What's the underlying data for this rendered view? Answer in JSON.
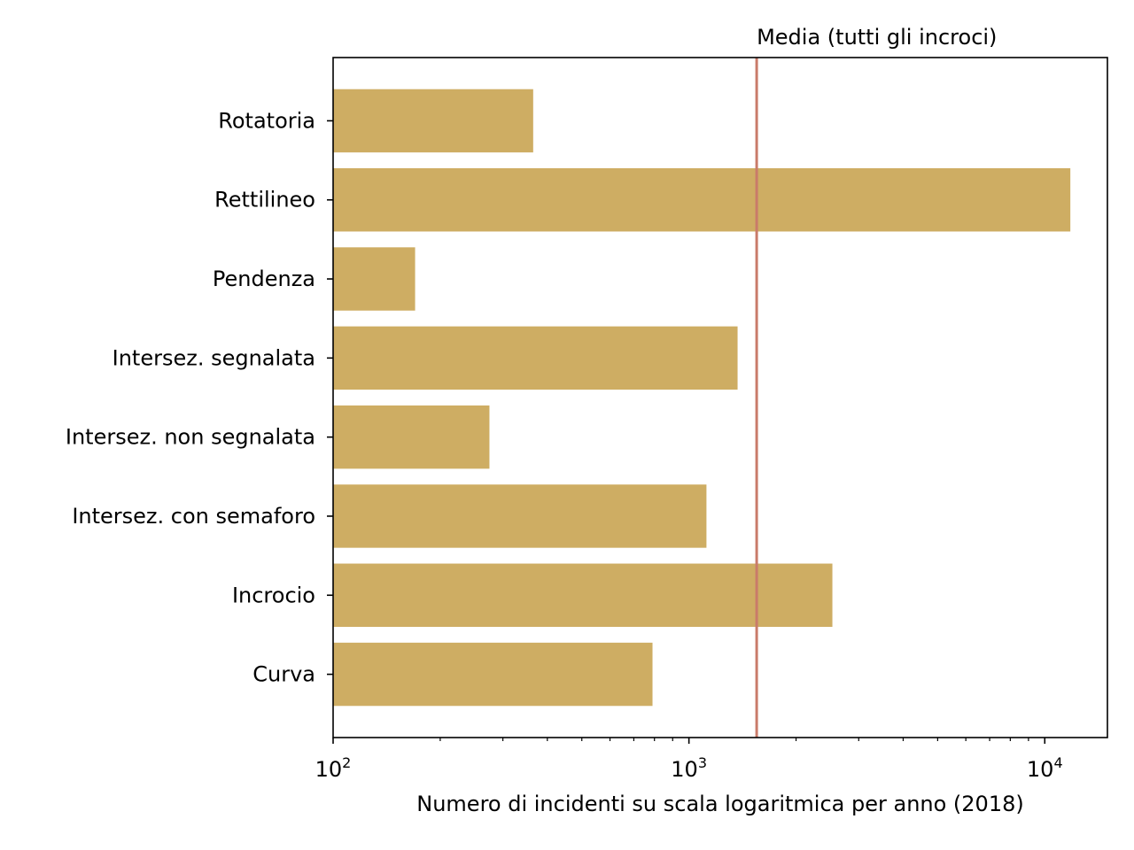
{
  "chart_data": {
    "type": "bar",
    "orientation": "horizontal",
    "x_scale": "log",
    "xlim": [
      100,
      15000
    ],
    "categories": [
      "Curva",
      "Incrocio",
      "Intersez. con semaforo",
      "Intersez. non segnalata",
      "Intersez. segnalata",
      "Pendenza",
      "Rettilineo",
      "Rotatoria"
    ],
    "values": [
      790,
      2530,
      1120,
      275,
      1370,
      170,
      11800,
      365
    ],
    "xlabel": "Numero di incidenti su scala logaritmica per anno (2018)",
    "ylabel": "",
    "x_major_ticks": [
      {
        "value": 100,
        "base": "10",
        "exp": "2"
      },
      {
        "value": 1000,
        "base": "10",
        "exp": "3"
      },
      {
        "value": 10000,
        "base": "10",
        "exp": "4"
      }
    ],
    "reference_line": {
      "value": 1550,
      "label": "Media (tutti gli incroci)",
      "color": "#c97b6a"
    },
    "bar_color": "#cead63",
    "grid": false
  }
}
